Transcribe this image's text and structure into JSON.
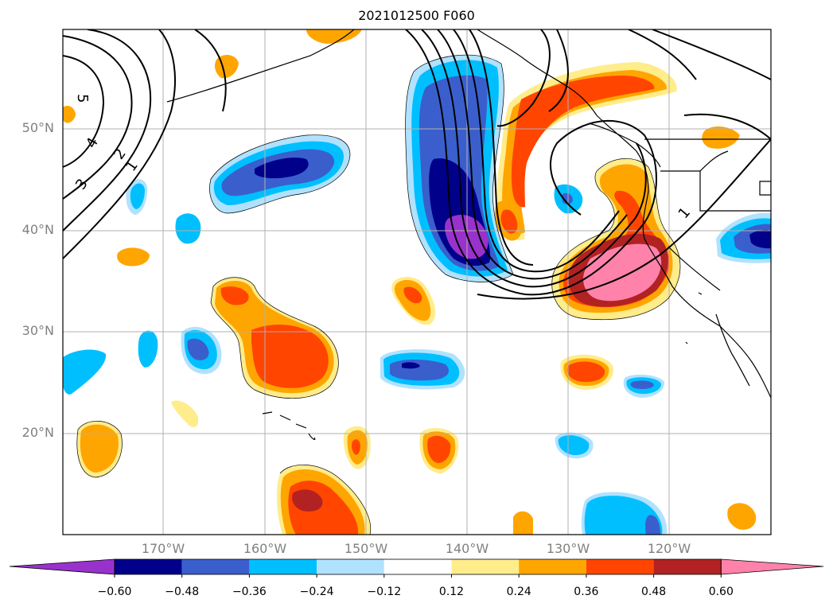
{
  "title": "2021012500 F060",
  "lat_labels": [
    "50°N",
    "40°N",
    "30°N",
    "20°N"
  ],
  "lon_labels": [
    "170°W",
    "160°W",
    "150°W",
    "140°W",
    "130°W",
    "120°W"
  ],
  "contour_labels": [
    "5",
    "4",
    "3",
    "2",
    "1",
    "1"
  ],
  "colorbar": {
    "ticks": [
      "−0.60",
      "−0.48",
      "−0.36",
      "−0.24",
      "−0.12",
      "0.12",
      "0.24",
      "0.36",
      "0.48",
      "0.60"
    ],
    "colors": [
      "#9932cc",
      "#00008b",
      "#3a5fcd",
      "#00bfff",
      "#b0e2ff",
      "#ffffff",
      "#ffec8b",
      "#ffa500",
      "#ff4500",
      "#b22222",
      "#ff82ab"
    ]
  },
  "colors": {
    "coast": "#000000",
    "contour": "#000000",
    "grid": "#b0b0b0"
  }
}
